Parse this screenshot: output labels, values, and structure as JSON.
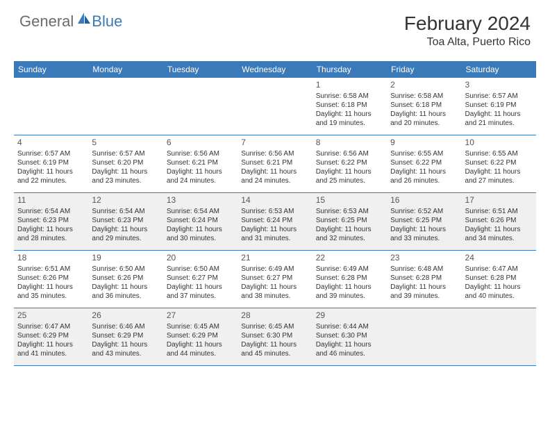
{
  "logo": {
    "general": "General",
    "blue": "Blue"
  },
  "title": "February 2024",
  "location": "Toa Alta, Puerto Rico",
  "colors": {
    "header_bg": "#3a7ab8",
    "alt_row_bg": "#f0f0f0",
    "text": "#333333",
    "logo_gray": "#6b6b6b",
    "logo_blue": "#3a7ab8"
  },
  "weekdays": [
    "Sunday",
    "Monday",
    "Tuesday",
    "Wednesday",
    "Thursday",
    "Friday",
    "Saturday"
  ],
  "layout": {
    "first_weekday_index": 4,
    "days_in_month": 29,
    "alt_week_indices": [
      2,
      4
    ]
  },
  "days": [
    {
      "n": 1,
      "sunrise": "6:58 AM",
      "sunset": "6:18 PM",
      "dl_h": 11,
      "dl_m": 19
    },
    {
      "n": 2,
      "sunrise": "6:58 AM",
      "sunset": "6:18 PM",
      "dl_h": 11,
      "dl_m": 20
    },
    {
      "n": 3,
      "sunrise": "6:57 AM",
      "sunset": "6:19 PM",
      "dl_h": 11,
      "dl_m": 21
    },
    {
      "n": 4,
      "sunrise": "6:57 AM",
      "sunset": "6:19 PM",
      "dl_h": 11,
      "dl_m": 22
    },
    {
      "n": 5,
      "sunrise": "6:57 AM",
      "sunset": "6:20 PM",
      "dl_h": 11,
      "dl_m": 23
    },
    {
      "n": 6,
      "sunrise": "6:56 AM",
      "sunset": "6:21 PM",
      "dl_h": 11,
      "dl_m": 24
    },
    {
      "n": 7,
      "sunrise": "6:56 AM",
      "sunset": "6:21 PM",
      "dl_h": 11,
      "dl_m": 24
    },
    {
      "n": 8,
      "sunrise": "6:56 AM",
      "sunset": "6:22 PM",
      "dl_h": 11,
      "dl_m": 25
    },
    {
      "n": 9,
      "sunrise": "6:55 AM",
      "sunset": "6:22 PM",
      "dl_h": 11,
      "dl_m": 26
    },
    {
      "n": 10,
      "sunrise": "6:55 AM",
      "sunset": "6:22 PM",
      "dl_h": 11,
      "dl_m": 27
    },
    {
      "n": 11,
      "sunrise": "6:54 AM",
      "sunset": "6:23 PM",
      "dl_h": 11,
      "dl_m": 28
    },
    {
      "n": 12,
      "sunrise": "6:54 AM",
      "sunset": "6:23 PM",
      "dl_h": 11,
      "dl_m": 29
    },
    {
      "n": 13,
      "sunrise": "6:54 AM",
      "sunset": "6:24 PM",
      "dl_h": 11,
      "dl_m": 30
    },
    {
      "n": 14,
      "sunrise": "6:53 AM",
      "sunset": "6:24 PM",
      "dl_h": 11,
      "dl_m": 31
    },
    {
      "n": 15,
      "sunrise": "6:53 AM",
      "sunset": "6:25 PM",
      "dl_h": 11,
      "dl_m": 32
    },
    {
      "n": 16,
      "sunrise": "6:52 AM",
      "sunset": "6:25 PM",
      "dl_h": 11,
      "dl_m": 33
    },
    {
      "n": 17,
      "sunrise": "6:51 AM",
      "sunset": "6:26 PM",
      "dl_h": 11,
      "dl_m": 34
    },
    {
      "n": 18,
      "sunrise": "6:51 AM",
      "sunset": "6:26 PM",
      "dl_h": 11,
      "dl_m": 35
    },
    {
      "n": 19,
      "sunrise": "6:50 AM",
      "sunset": "6:26 PM",
      "dl_h": 11,
      "dl_m": 36
    },
    {
      "n": 20,
      "sunrise": "6:50 AM",
      "sunset": "6:27 PM",
      "dl_h": 11,
      "dl_m": 37
    },
    {
      "n": 21,
      "sunrise": "6:49 AM",
      "sunset": "6:27 PM",
      "dl_h": 11,
      "dl_m": 38
    },
    {
      "n": 22,
      "sunrise": "6:49 AM",
      "sunset": "6:28 PM",
      "dl_h": 11,
      "dl_m": 39
    },
    {
      "n": 23,
      "sunrise": "6:48 AM",
      "sunset": "6:28 PM",
      "dl_h": 11,
      "dl_m": 39
    },
    {
      "n": 24,
      "sunrise": "6:47 AM",
      "sunset": "6:28 PM",
      "dl_h": 11,
      "dl_m": 40
    },
    {
      "n": 25,
      "sunrise": "6:47 AM",
      "sunset": "6:29 PM",
      "dl_h": 11,
      "dl_m": 41
    },
    {
      "n": 26,
      "sunrise": "6:46 AM",
      "sunset": "6:29 PM",
      "dl_h": 11,
      "dl_m": 43
    },
    {
      "n": 27,
      "sunrise": "6:45 AM",
      "sunset": "6:29 PM",
      "dl_h": 11,
      "dl_m": 44
    },
    {
      "n": 28,
      "sunrise": "6:45 AM",
      "sunset": "6:30 PM",
      "dl_h": 11,
      "dl_m": 45
    },
    {
      "n": 29,
      "sunrise": "6:44 AM",
      "sunset": "6:30 PM",
      "dl_h": 11,
      "dl_m": 46
    }
  ],
  "labels": {
    "sunrise": "Sunrise:",
    "sunset": "Sunset:",
    "daylight_prefix": "Daylight:",
    "hours_word": "hours",
    "and_word": "and",
    "minutes_word": "minutes."
  }
}
